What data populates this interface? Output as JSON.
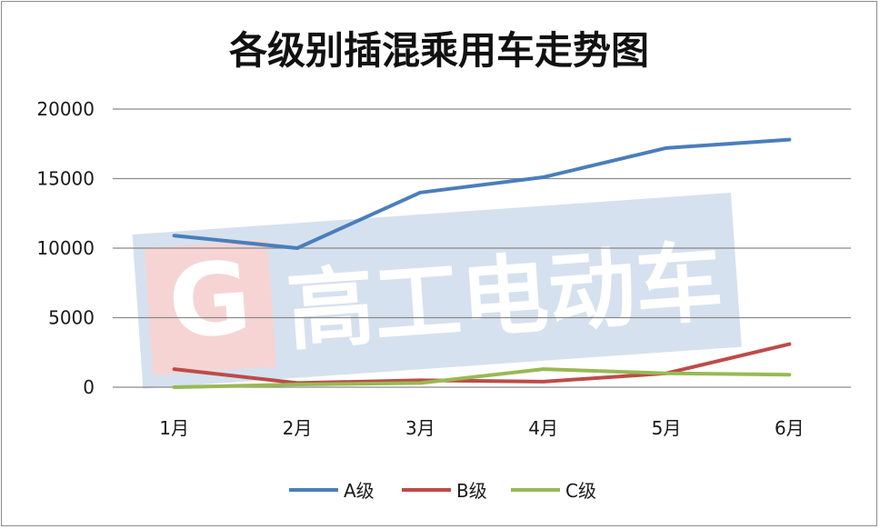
{
  "chart_data": {
    "type": "line",
    "title": "各级别插混乘用车走势图",
    "xlabel": "",
    "ylabel": "",
    "categories": [
      "1月",
      "2月",
      "3月",
      "4月",
      "5月",
      "6月"
    ],
    "ylim": [
      0,
      20000
    ],
    "yticks": [
      "0",
      "5000",
      "10000",
      "15000",
      "20000"
    ],
    "grid": true,
    "legend_position": "bottom",
    "series": [
      {
        "name": "A级",
        "color": "#4a7ebb",
        "values": [
          10900,
          10000,
          14000,
          15100,
          17200,
          17800
        ]
      },
      {
        "name": "B级",
        "color": "#be4b48",
        "values": [
          1300,
          300,
          500,
          400,
          1000,
          3100
        ]
      },
      {
        "name": "C级",
        "color": "#98b954",
        "values": [
          0,
          200,
          300,
          1300,
          1000,
          900
        ]
      }
    ]
  },
  "watermark": {
    "text": "高工电动车",
    "logo_letter": "G",
    "color": "#b8cde6",
    "logo_color": "#f2b6b6"
  }
}
